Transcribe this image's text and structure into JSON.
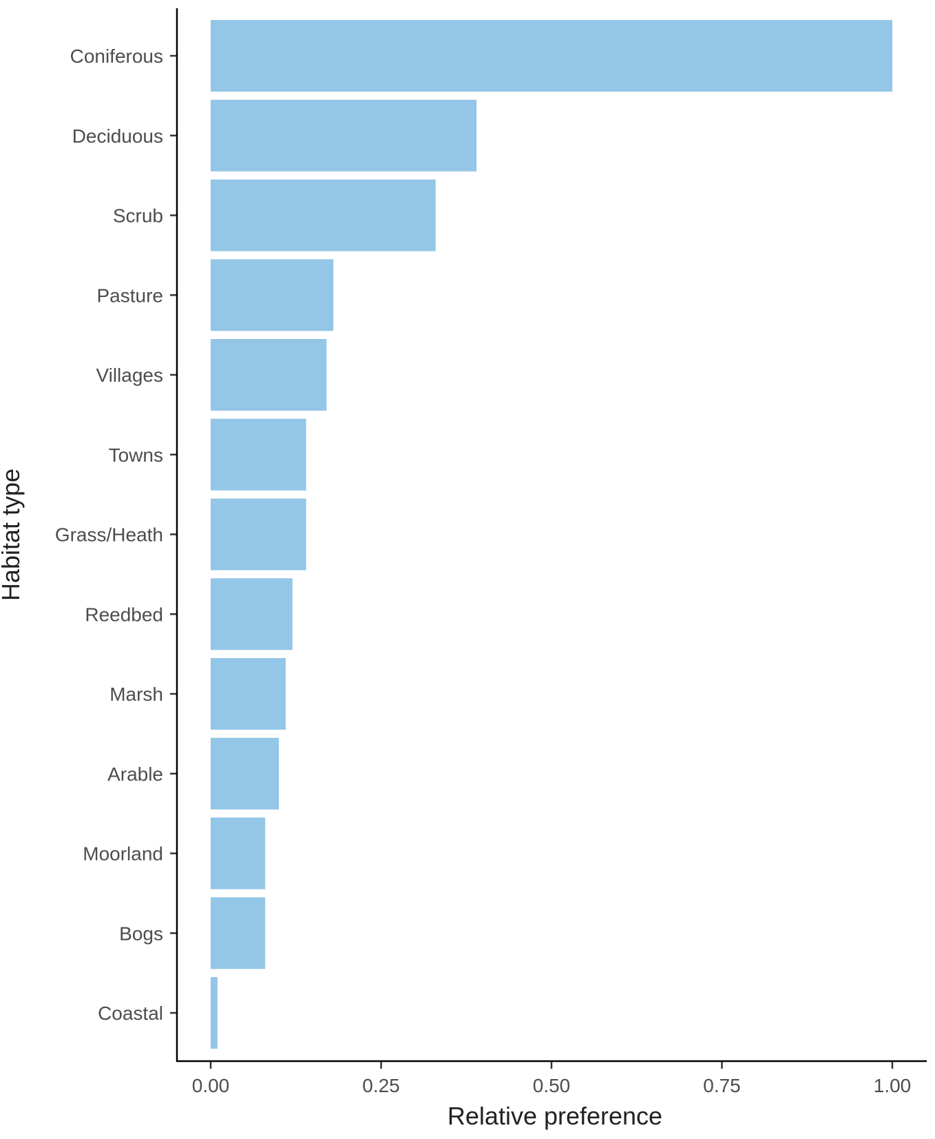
{
  "chart_data": {
    "type": "bar",
    "orientation": "horizontal",
    "title": "",
    "xlabel": "Relative preference",
    "ylabel": "Habitat type",
    "xlim": [
      -0.05,
      1.05
    ],
    "x_ticks": [
      "0.00",
      "0.25",
      "0.50",
      "0.75",
      "1.00"
    ],
    "x_tick_values": [
      0,
      0.25,
      0.5,
      0.75,
      1.0
    ],
    "categories": [
      "Coniferous",
      "Deciduous",
      "Scrub",
      "Pasture",
      "Villages",
      "Towns",
      "Grass/Heath",
      "Reedbed",
      "Marsh",
      "Arable",
      "Moorland",
      "Bogs",
      "Coastal"
    ],
    "values": [
      1.0,
      0.39,
      0.33,
      0.18,
      0.17,
      0.14,
      0.14,
      0.12,
      0.11,
      0.1,
      0.08,
      0.08,
      0.01
    ],
    "grid": false,
    "legend": "none",
    "bar_color": "#93c6e7",
    "axis_color": "#000000"
  }
}
